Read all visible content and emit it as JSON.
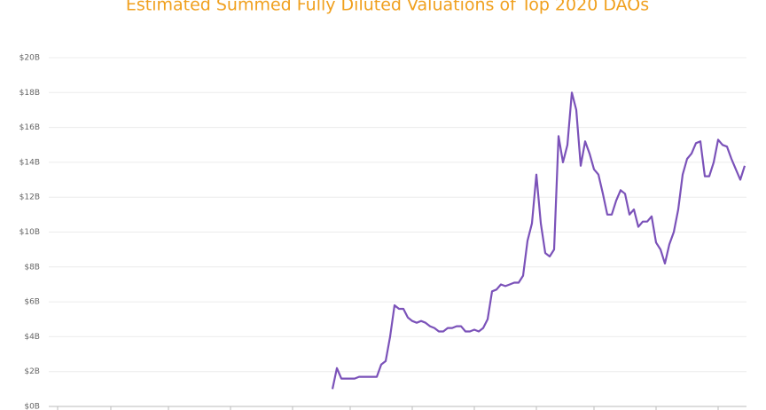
{
  "chart_data": {
    "type": "line",
    "title": "Estimated Summed Fully Diluted Valuations of Top 2020 DAOs",
    "categories": [
      null,
      null,
      null,
      null,
      null,
      null,
      null,
      null,
      null,
      null,
      null,
      null,
      null,
      null,
      null,
      null,
      null,
      null,
      null,
      null,
      null,
      null,
      null,
      null,
      null,
      null,
      null,
      null,
      null,
      null,
      null,
      null,
      null,
      null,
      null,
      null,
      null,
      null,
      null,
      null,
      null,
      null,
      null,
      null,
      null,
      null,
      null,
      null,
      null,
      null,
      null,
      null,
      null,
      null,
      null,
      null,
      null,
      null,
      null,
      null,
      null,
      null,
      null,
      null,
      null,
      null,
      null,
      null,
      null,
      null,
      null,
      null,
      null,
      null,
      null,
      null,
      null,
      null,
      null,
      null,
      null,
      null,
      null,
      null,
      null,
      null,
      null,
      null,
      null,
      null,
      null,
      null,
      null,
      null,
      null,
      null,
      null,
      null,
      null,
      null,
      null,
      null,
      null,
      null,
      null,
      null,
      null,
      null,
      null,
      null,
      null,
      null,
      null,
      null,
      null,
      null,
      null,
      null,
      null,
      null,
      null,
      null,
      null,
      null,
      null,
      null,
      null,
      null,
      null,
      null,
      null,
      null,
      null,
      null,
      null,
      null,
      null,
      null,
      null,
      null,
      null,
      null,
      null,
      null,
      null,
      null,
      null,
      null,
      null,
      null,
      null,
      null,
      null,
      null,
      null,
      null
    ],
    "series": [
      {
        "name": null,
        "color": "#7b52b9",
        "values": [
          null,
          null,
          null,
          null,
          null,
          null,
          null,
          null,
          null,
          null,
          null,
          null,
          null,
          null,
          null,
          null,
          null,
          null,
          null,
          null,
          null,
          null,
          null,
          null,
          null,
          null,
          null,
          null,
          null,
          null,
          null,
          null,
          null,
          null,
          null,
          null,
          null,
          null,
          null,
          null,
          null,
          null,
          null,
          null,
          null,
          null,
          null,
          null,
          null,
          null,
          null,
          null,
          null,
          null,
          null,
          null,
          null,
          null,
          null,
          null,
          null,
          null,
          1.0,
          2.2,
          1.6,
          1.6,
          1.6,
          1.6,
          1.7,
          1.7,
          1.7,
          1.7,
          1.7,
          2.4,
          2.6,
          4.0,
          5.8,
          5.6,
          5.6,
          5.1,
          4.9,
          4.8,
          4.9,
          4.8,
          4.6,
          4.5,
          4.3,
          4.3,
          4.5,
          4.5,
          4.6,
          4.6,
          4.3,
          4.3,
          4.4,
          4.3,
          4.5,
          5.0,
          6.6,
          6.7,
          7.0,
          6.9,
          7.0,
          7.1,
          7.1,
          7.5,
          9.5,
          10.5,
          13.3,
          10.5,
          8.8,
          8.6,
          9.0,
          15.5,
          14.0,
          15.0,
          18.0,
          17.0,
          13.8,
          15.2,
          14.5,
          13.6,
          13.3,
          12.2,
          11.0,
          11.0,
          11.8,
          12.4,
          12.2,
          11.0,
          11.3,
          10.3,
          10.6,
          10.6,
          10.9,
          9.4,
          9.0,
          8.2,
          9.3,
          10.0,
          11.3,
          13.3,
          14.2,
          14.5,
          15.1,
          15.2,
          13.2,
          13.2,
          14.0,
          15.3,
          15.0,
          14.9,
          14.2,
          13.6,
          13.0,
          13.8
        ]
      }
    ],
    "ylim": [
      0,
      20
    ],
    "yticks": [
      {
        "value": 0,
        "label": "$0B"
      },
      {
        "value": 2,
        "label": "$2B"
      },
      {
        "value": 4,
        "label": "$4B"
      },
      {
        "value": 6,
        "label": "$6B"
      },
      {
        "value": 8,
        "label": "$8B"
      },
      {
        "value": 10,
        "label": "$10B"
      },
      {
        "value": 12,
        "label": "$12B"
      },
      {
        "value": 14,
        "label": "$14B"
      },
      {
        "value": 16,
        "label": "$16B"
      },
      {
        "value": 18,
        "label": "$18B"
      },
      {
        "value": 20,
        "label": "$20B"
      }
    ],
    "grid": true
  }
}
